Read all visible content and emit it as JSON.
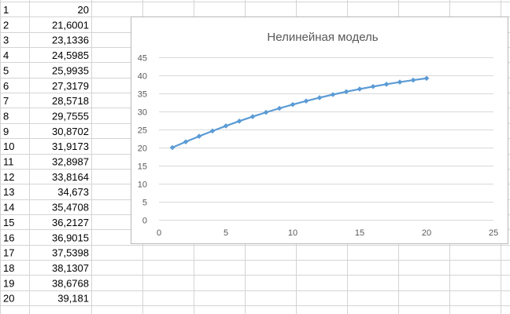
{
  "sheet": {
    "rows": [
      {
        "row": "1",
        "value": "20"
      },
      {
        "row": "2",
        "value": "21,6001"
      },
      {
        "row": "3",
        "value": "23,1336"
      },
      {
        "row": "4",
        "value": "24,5985"
      },
      {
        "row": "5",
        "value": "25,9935"
      },
      {
        "row": "6",
        "value": "27,3179"
      },
      {
        "row": "7",
        "value": "28,5718"
      },
      {
        "row": "8",
        "value": "29,7555"
      },
      {
        "row": "9",
        "value": "30,8702"
      },
      {
        "row": "10",
        "value": "31,9173"
      },
      {
        "row": "11",
        "value": "32,8987"
      },
      {
        "row": "12",
        "value": "33,8164"
      },
      {
        "row": "13",
        "value": "34,673"
      },
      {
        "row": "14",
        "value": "35,4708"
      },
      {
        "row": "15",
        "value": "36,2127"
      },
      {
        "row": "16",
        "value": "36,9015"
      },
      {
        "row": "17",
        "value": "37,5398"
      },
      {
        "row": "18",
        "value": "38,1307"
      },
      {
        "row": "19",
        "value": "38,6768"
      },
      {
        "row": "20",
        "value": "39,181"
      }
    ]
  },
  "chart_data": {
    "type": "scatter",
    "title": "Нелинейная модель",
    "xlabel": "",
    "ylabel": "",
    "xlim": [
      0,
      25
    ],
    "ylim": [
      0,
      45
    ],
    "x_ticks": [
      "0",
      "5",
      "10",
      "15",
      "20",
      "25"
    ],
    "y_ticks": [
      "0",
      "5",
      "10",
      "15",
      "20",
      "25",
      "30",
      "35",
      "40",
      "45"
    ],
    "grid": "horizontal",
    "series": [
      {
        "color": "#5b9bd5",
        "x": [
          1,
          2,
          3,
          4,
          5,
          6,
          7,
          8,
          9,
          10,
          11,
          12,
          13,
          14,
          15,
          16,
          17,
          18,
          19,
          20
        ],
        "y": [
          20,
          21.6001,
          23.1336,
          24.5985,
          25.9935,
          27.3179,
          28.5718,
          29.7555,
          30.8702,
          31.9173,
          32.8987,
          33.8164,
          34.673,
          35.4708,
          36.2127,
          36.9015,
          37.5398,
          38.1307,
          38.6768,
          39.181
        ]
      }
    ]
  }
}
